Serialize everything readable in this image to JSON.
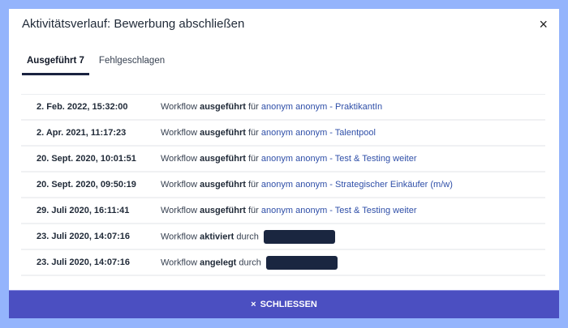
{
  "title": "Aktivitätsverlauf: Bewerbung abschließen",
  "close_icon": "×",
  "tabs": [
    {
      "label": "Ausgeführt 7",
      "active": true
    },
    {
      "label": "Fehlgeschlagen",
      "active": false
    }
  ],
  "rows": [
    {
      "date": "2. Feb. 2022, 15:32:00",
      "prefix": "Workflow",
      "action": "ausgeführt",
      "conj": "für",
      "target": "anonym anonym - PraktikantIn"
    },
    {
      "date": "2. Apr. 2021, 11:17:23",
      "prefix": "Workflow",
      "action": "ausgeführt",
      "conj": "für",
      "target": "anonym anonym - Talentpool"
    },
    {
      "date": "20. Sept. 2020, 10:01:51",
      "prefix": "Workflow",
      "action": "ausgeführt",
      "conj": "für",
      "target": "anonym anonym - Test & Testing weiter"
    },
    {
      "date": "20. Sept. 2020, 09:50:19",
      "prefix": "Workflow",
      "action": "ausgeführt",
      "conj": "für",
      "target": "anonym anonym - Strategischer Einkäufer (m/w)"
    },
    {
      "date": "29. Juli 2020, 16:11:41",
      "prefix": "Workflow",
      "action": "ausgeführt",
      "conj": "für",
      "target": "anonym anonym - Test & Testing weiter"
    },
    {
      "date": "23. Juli 2020, 14:07:16",
      "prefix": "Workflow",
      "action": "aktiviert",
      "conj": "durch",
      "target": null
    },
    {
      "date": "23. Juli 2020, 14:07:16",
      "prefix": "Workflow",
      "action": "angelegt",
      "conj": "durch",
      "target": null
    }
  ],
  "footer": {
    "icon": "×",
    "label": "SCHLIESSEN"
  },
  "colors": {
    "backdrop": "#94b4fc",
    "accent": "#4b4fc1",
    "link": "#2f4fa8"
  }
}
